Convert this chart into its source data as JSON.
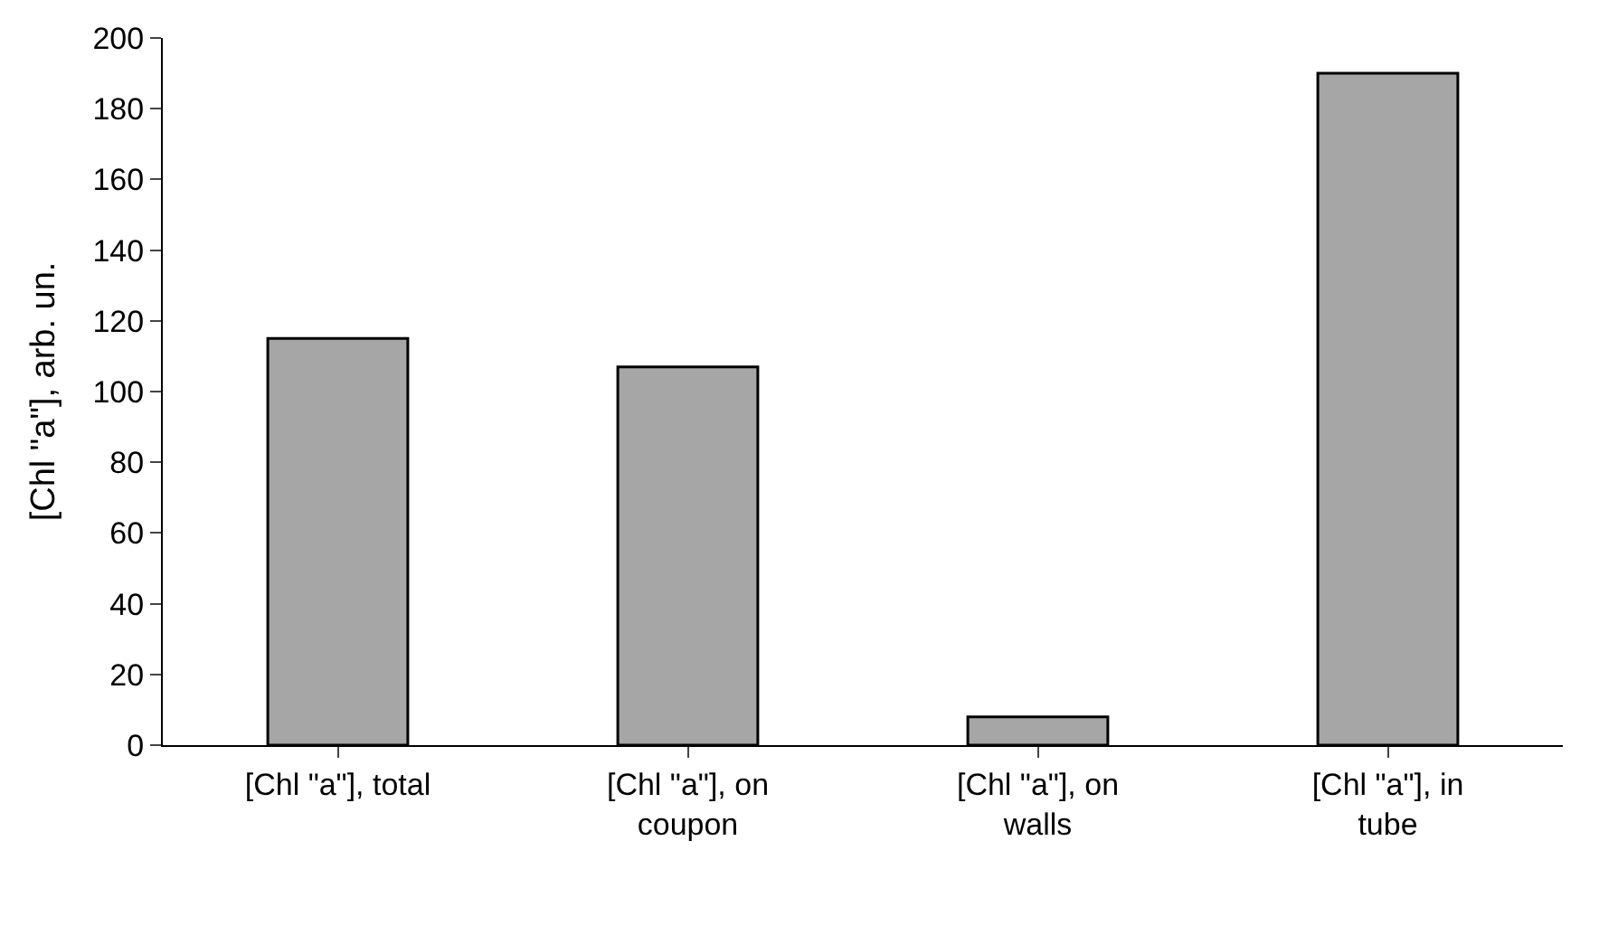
{
  "chart_data": {
    "type": "bar",
    "ylabel": "[Chl \"a\"], arb. un.",
    "categories": [
      "[Chl \"a\"], total",
      "[Chl \"a\"], on coupon",
      "[Chl \"a\"], on walls",
      "[Chl \"a\"], in tube"
    ],
    "values": [
      115,
      107,
      8,
      190
    ],
    "color": "#a6a6a6",
    "ylim": [
      0,
      200
    ],
    "yticks": [
      0,
      20,
      40,
      60,
      80,
      100,
      120,
      140,
      160,
      180,
      200
    ],
    "grid": false
  }
}
